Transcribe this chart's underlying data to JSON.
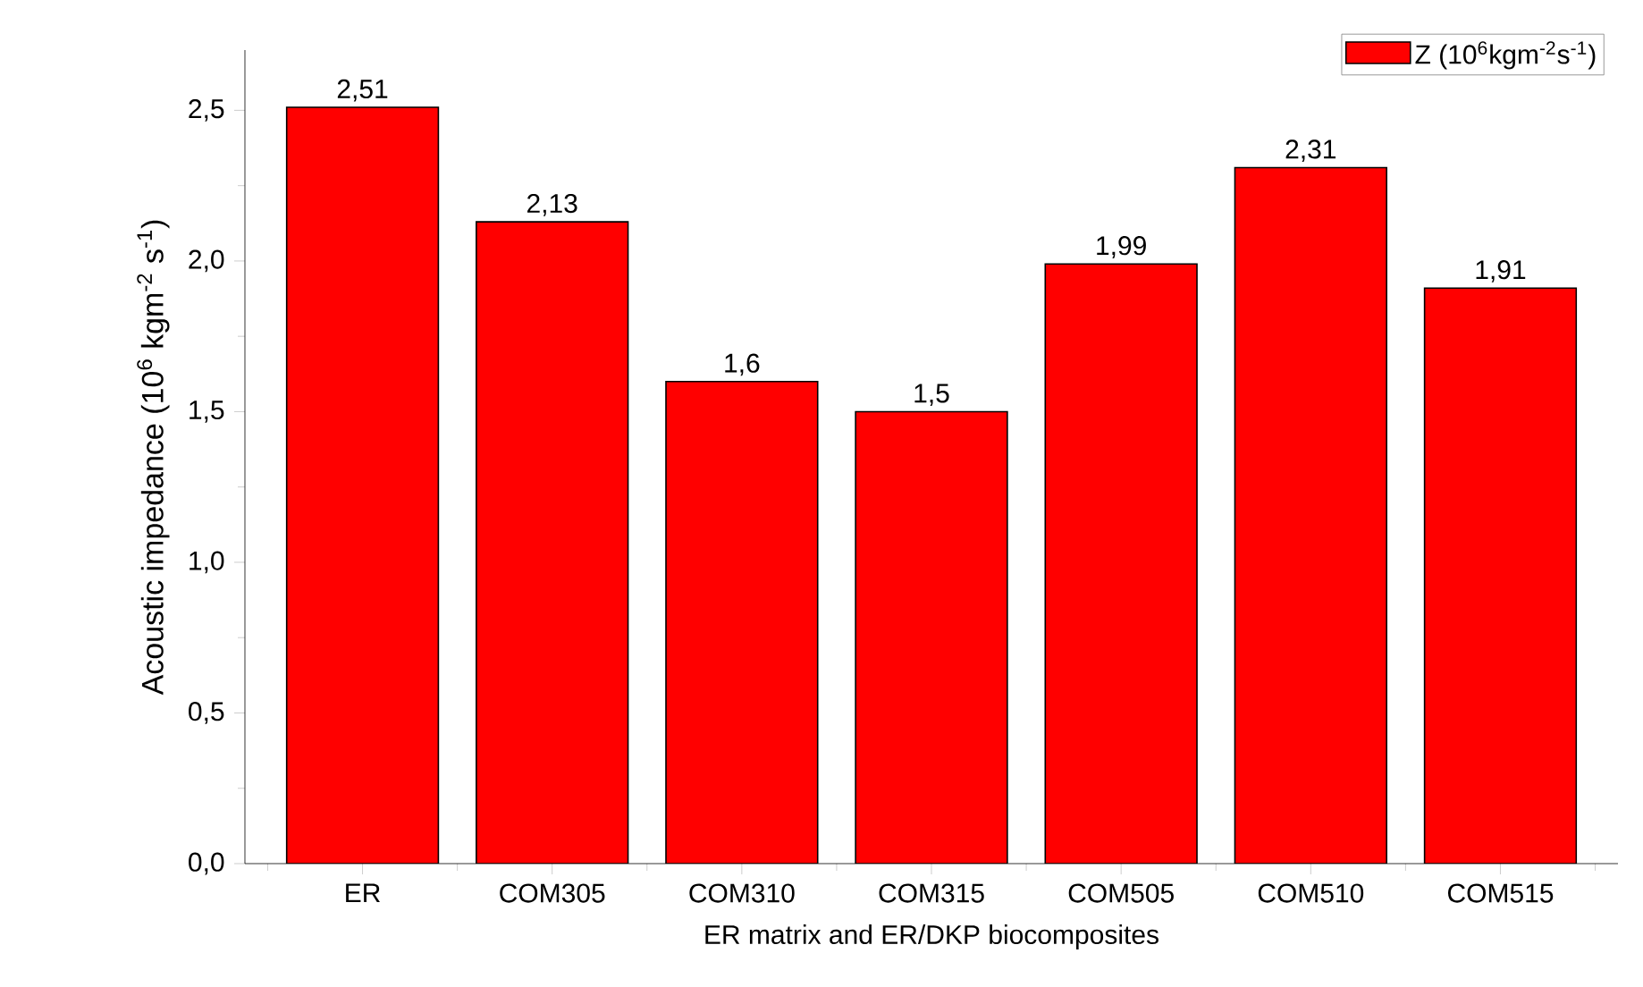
{
  "chart_data": {
    "type": "bar",
    "xlabel": "ER matrix and ER/DKP biocomposites",
    "ylabel": "Acoustic impedance (10$^{6}$ kgm$^{-2}$ s$^{-1}$)",
    "categories": [
      "ER",
      "COM305",
      "COM310",
      "COM315",
      "COM505",
      "COM510",
      "COM515"
    ],
    "series": [
      {
        "name": "Z (10$^{6}$kgm$^{-2}$s$^{-1}$)",
        "color": "#ff0000",
        "values": [
          2.51,
          2.13,
          1.6,
          1.5,
          1.99,
          2.31,
          1.91
        ],
        "value_labels": [
          "2,51",
          "2,13",
          "1,6",
          "1,5",
          "1,99",
          "2,31",
          "1,91"
        ]
      }
    ],
    "ylim": [
      0,
      2.7
    ],
    "yticks": [
      {
        "value": 0,
        "label": "0,0"
      },
      {
        "value": 0.5,
        "label": "0,5"
      },
      {
        "value": 1.0,
        "label": "1,0"
      },
      {
        "value": 1.5,
        "label": "1,5"
      },
      {
        "value": 2.0,
        "label": "2,0"
      },
      {
        "value": 2.5,
        "label": "2,5"
      }
    ],
    "legend": "top right",
    "grid": false
  }
}
